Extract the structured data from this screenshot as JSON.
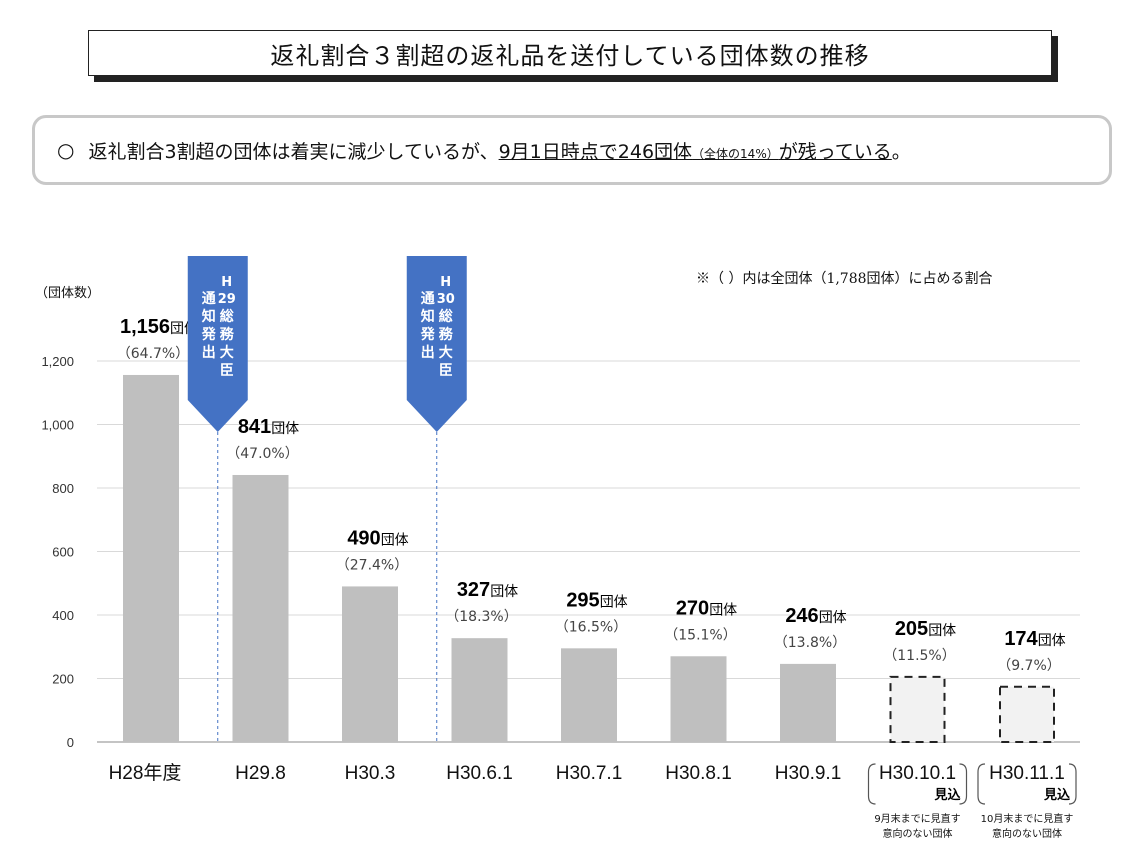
{
  "title": "返礼割合３割超の返礼品を送付している団体数の推移",
  "summary": {
    "marker": "○",
    "text_before": "返礼割合3割超の団体は着実に減少しているが、",
    "underlined_main": "9月1日時点で246団体",
    "underlined_small": "（全体の14%）",
    "underlined_tail": "が残っている",
    "end": "。"
  },
  "note": "※（ ）内は全団体（1,788団体）に占める割合",
  "unit_label": "（団体数）",
  "chart_data": {
    "type": "bar",
    "ylim": [
      0,
      1200
    ],
    "yticks": [
      0,
      200,
      400,
      600,
      800,
      1000,
      1200
    ],
    "ytick_labels": [
      "0",
      "200",
      "400",
      "600",
      "800",
      "1,000",
      "1,200"
    ],
    "grid": true,
    "categories": [
      "H28年度",
      "H29.8",
      "H30.3",
      "H30.6.1",
      "H30.7.1",
      "H30.8.1",
      "H30.9.1",
      "H30.10.1",
      "H30.11.1"
    ],
    "values": [
      1156,
      841,
      490,
      327,
      295,
      270,
      246,
      205,
      174
    ],
    "value_labels": [
      "1,156",
      "841",
      "490",
      "327",
      "295",
      "270",
      "246",
      "205",
      "174"
    ],
    "value_unit": "団体",
    "percent_labels": [
      "（64.7%）",
      "（47.0%）",
      "（27.4%）",
      "（18.3%）",
      "（16.5%）",
      "（15.1%）",
      "（13.8%）",
      "（11.5%）",
      "（9.7%）"
    ],
    "projected": [
      false,
      false,
      false,
      false,
      false,
      false,
      false,
      true,
      true
    ],
    "projected_suffix": "見込",
    "projection_notes": [
      [
        "9月末までに見直す",
        "意向のない団体"
      ],
      [
        "10月末までに見直す",
        "意向のない団体"
      ]
    ],
    "annotations": [
      {
        "after_index": 0,
        "lines": [
          "H",
          "29",
          "通",
          "知",
          "発",
          "出"
        ],
        "label_top": "H29",
        "label_body": "総務大臣通知発出"
      },
      {
        "after_index": 2,
        "lines": [
          "H",
          "30",
          "通",
          "知",
          "発",
          "出"
        ],
        "label_top": "H30",
        "label_body": "総務大臣通知発出"
      }
    ],
    "colors": {
      "bar": "#bfbfbf",
      "projected_fill": "#f2f2f2",
      "arrow": "#4472c4",
      "grid": "#d9d9d9"
    }
  }
}
